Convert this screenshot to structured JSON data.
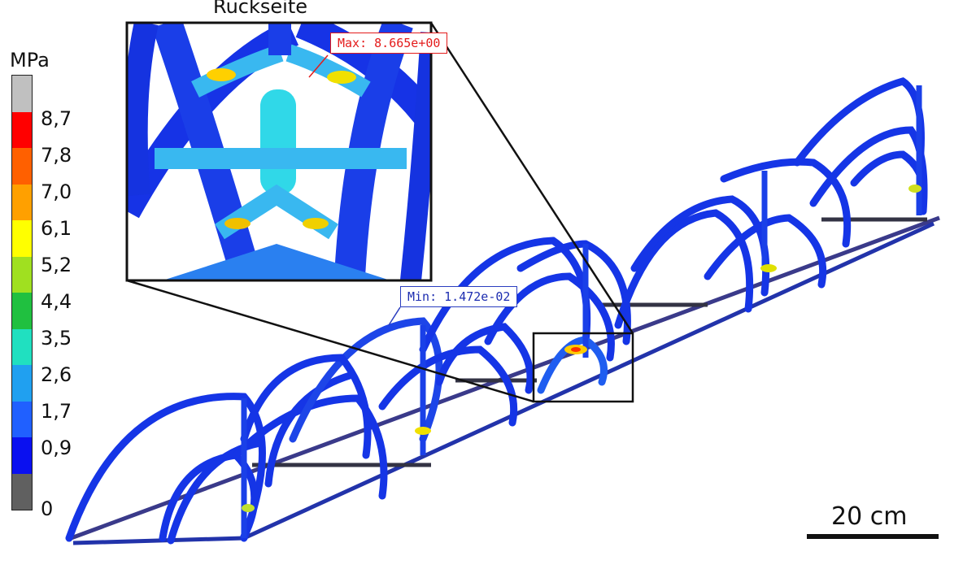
{
  "unit": "MPa",
  "legend": {
    "colors": [
      "#c0c0c0",
      "#ff0000",
      "#ff6000",
      "#ffa000",
      "#ffff00",
      "#a0e020",
      "#20c040",
      "#20e0c0",
      "#20a0f0",
      "#2060ff",
      "#0a10f0",
      "#606060"
    ],
    "ticks": [
      "8,7",
      "7,8",
      "7,0",
      "6,1",
      "5,2",
      "4,4",
      "3,5",
      "2,6",
      "1,7",
      "0,9",
      "0"
    ]
  },
  "inset": {
    "title": "Rückseite"
  },
  "probes": {
    "max": "Max: 8.665e+00",
    "min": "Min: 1.472e-02"
  },
  "scalebar": {
    "label": "20 cm"
  }
}
